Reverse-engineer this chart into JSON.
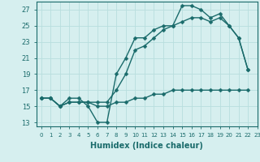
{
  "line1": {
    "x": [
      0,
      1,
      2,
      3,
      4,
      5,
      6,
      7,
      8,
      9,
      10,
      11,
      12,
      13,
      14,
      15,
      16,
      17,
      18,
      19,
      20,
      21,
      22
    ],
    "y": [
      16,
      16,
      15,
      16,
      16,
      15,
      13,
      13,
      19,
      21,
      23.5,
      23.5,
      24.5,
      25,
      25,
      27.5,
      27.5,
      27,
      26,
      26.5,
      25,
      23.5,
      19.5
    ]
  },
  "line2": {
    "x": [
      0,
      1,
      2,
      3,
      4,
      5,
      6,
      7,
      8,
      9,
      10,
      11,
      12,
      13,
      14,
      15,
      16,
      17,
      18,
      19,
      20,
      21,
      22
    ],
    "y": [
      16,
      16,
      15,
      15.5,
      15.5,
      15.5,
      15.5,
      15.5,
      17,
      19,
      22,
      22.5,
      23.5,
      24.5,
      25,
      25.5,
      26,
      26,
      25.5,
      26,
      25,
      23.5,
      19.5
    ]
  },
  "line3": {
    "x": [
      0,
      1,
      2,
      3,
      4,
      5,
      6,
      7,
      8,
      9,
      10,
      11,
      12,
      13,
      14,
      15,
      16,
      17,
      18,
      19,
      20,
      21,
      22
    ],
    "y": [
      16,
      16,
      15,
      15.5,
      15.5,
      15.5,
      15,
      15,
      15.5,
      15.5,
      16,
      16,
      16.5,
      16.5,
      17,
      17,
      17,
      17,
      17,
      17,
      17,
      17,
      17
    ]
  },
  "color": "#1a6b6b",
  "bg_color": "#d6efef",
  "grid_color": "#b8dede",
  "xlim": [
    -0.5,
    23
  ],
  "ylim": [
    12.5,
    28
  ],
  "yticks": [
    13,
    15,
    17,
    19,
    21,
    23,
    25,
    27
  ],
  "xticks": [
    0,
    1,
    2,
    3,
    4,
    5,
    6,
    7,
    8,
    9,
    10,
    11,
    12,
    13,
    14,
    15,
    16,
    17,
    18,
    19,
    20,
    21,
    22,
    23
  ],
  "xlabel": "Humidex (Indice chaleur)",
  "markersize": 2.5,
  "linewidth": 1.0,
  "xlabel_fontsize": 7,
  "tick_fontsize": 5,
  "ytick_fontsize": 6
}
